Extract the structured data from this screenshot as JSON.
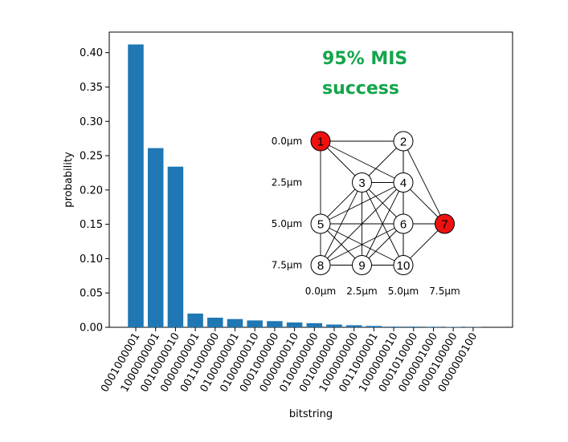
{
  "chart_data": {
    "type": "bar",
    "xlabel": "bitstring",
    "ylabel": "probability",
    "ylim": [
      0,
      0.43
    ],
    "yticks": [
      "0.00",
      "0.05",
      "0.10",
      "0.15",
      "0.20",
      "0.25",
      "0.30",
      "0.35",
      "0.40"
    ],
    "bar_color": "#1f77b4",
    "categories": [
      "0001000001",
      "1000000001",
      "0010000010",
      "0000000001",
      "0011000000",
      "0100000001",
      "0100000010",
      "0001000000",
      "0000000010",
      "0100000000",
      "0010000000",
      "1000000000",
      "0011000001",
      "1000000010",
      "0001010000",
      "0000001000",
      "0000100000",
      "0000000100"
    ],
    "values": [
      0.412,
      0.261,
      0.234,
      0.02,
      0.014,
      0.012,
      0.01,
      0.009,
      0.007,
      0.006,
      0.004,
      0.003,
      0.002,
      0.001,
      0.001,
      0.0008,
      0.0006,
      0.0004
    ],
    "annotation": {
      "line1": "95% MIS",
      "line2": "success",
      "color": "#13a54b"
    }
  },
  "graph_inset": {
    "x_labels": [
      "0.0μm",
      "2.5μm",
      "5.0μm",
      "7.5μm"
    ],
    "y_labels": [
      "0.0μm",
      "2.5μm",
      "5.0μm",
      "7.5μm"
    ],
    "highlight_color": "#ee1111",
    "nodes": [
      {
        "label": "1",
        "gx": 0.0,
        "gy": 0.0,
        "selected": true
      },
      {
        "label": "2",
        "gx": 5.0,
        "gy": 0.0,
        "selected": false
      },
      {
        "label": "3",
        "gx": 2.5,
        "gy": 2.5,
        "selected": false
      },
      {
        "label": "4",
        "gx": 5.0,
        "gy": 2.5,
        "selected": false
      },
      {
        "label": "5",
        "gx": 0.0,
        "gy": 5.0,
        "selected": false
      },
      {
        "label": "6",
        "gx": 5.0,
        "gy": 5.0,
        "selected": false
      },
      {
        "label": "7",
        "gx": 7.5,
        "gy": 5.0,
        "selected": true
      },
      {
        "label": "8",
        "gx": 0.0,
        "gy": 7.5,
        "selected": false
      },
      {
        "label": "9",
        "gx": 2.5,
        "gy": 7.5,
        "selected": false
      },
      {
        "label": "10",
        "gx": 5.0,
        "gy": 7.5,
        "selected": false
      }
    ],
    "edges": [
      [
        "1",
        "2"
      ],
      [
        "1",
        "3"
      ],
      [
        "1",
        "4"
      ],
      [
        "1",
        "5"
      ],
      [
        "2",
        "3"
      ],
      [
        "2",
        "4"
      ],
      [
        "2",
        "6"
      ],
      [
        "2",
        "7"
      ],
      [
        "3",
        "4"
      ],
      [
        "3",
        "5"
      ],
      [
        "3",
        "6"
      ],
      [
        "3",
        "8"
      ],
      [
        "3",
        "9"
      ],
      [
        "3",
        "10"
      ],
      [
        "4",
        "5"
      ],
      [
        "4",
        "6"
      ],
      [
        "4",
        "7"
      ],
      [
        "4",
        "8"
      ],
      [
        "4",
        "9"
      ],
      [
        "4",
        "10"
      ],
      [
        "5",
        "6"
      ],
      [
        "5",
        "8"
      ],
      [
        "5",
        "9"
      ],
      [
        "5",
        "10"
      ],
      [
        "6",
        "7"
      ],
      [
        "6",
        "8"
      ],
      [
        "6",
        "9"
      ],
      [
        "6",
        "10"
      ],
      [
        "7",
        "10"
      ],
      [
        "8",
        "9"
      ],
      [
        "9",
        "10"
      ]
    ]
  }
}
